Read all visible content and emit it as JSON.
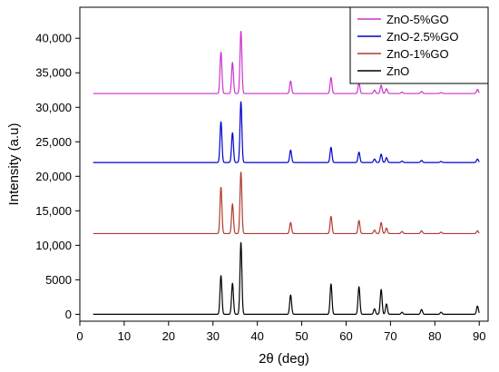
{
  "chart_data": {
    "type": "line",
    "title": "",
    "xlabel": "2θ (deg)",
    "ylabel": "Intensity (a.u)",
    "xlim": [
      0,
      92
    ],
    "ylim": [
      -1000,
      44500
    ],
    "x_ticks": [
      0,
      10,
      20,
      30,
      40,
      50,
      60,
      70,
      80,
      90
    ],
    "y_ticks": [
      0,
      5000,
      10000,
      15000,
      20000,
      25000,
      30000,
      35000,
      40000
    ],
    "y_tick_labels": [
      "0",
      "5000",
      "10,000",
      "15,000",
      "20,000",
      "25,000",
      "30,000",
      "35,000",
      "40,000"
    ],
    "grid": false,
    "legend_position": "top-right",
    "x_start": 3,
    "x_end": 90,
    "peak_width": 0.3,
    "series": [
      {
        "name": "ZnO-5%GO",
        "color": "#cc33cc",
        "baseline": 32000,
        "peaks": [
          [
            31.8,
            38000
          ],
          [
            34.4,
            36500
          ],
          [
            36.3,
            41000
          ],
          [
            47.5,
            33800
          ],
          [
            56.6,
            34300
          ],
          [
            62.9,
            33500
          ],
          [
            66.4,
            32500
          ],
          [
            67.9,
            33200
          ],
          [
            69.1,
            32700
          ],
          [
            72.6,
            32200
          ],
          [
            77.0,
            32300
          ],
          [
            81.4,
            32150
          ],
          [
            89.6,
            32600
          ]
        ]
      },
      {
        "name": "ZnO-2.5%GO",
        "color": "#0000cc",
        "baseline": 22000,
        "peaks": [
          [
            31.8,
            27900
          ],
          [
            34.4,
            26300
          ],
          [
            36.3,
            30800
          ],
          [
            47.5,
            23800
          ],
          [
            56.6,
            24200
          ],
          [
            62.9,
            23500
          ],
          [
            66.4,
            22500
          ],
          [
            67.9,
            23200
          ],
          [
            69.1,
            22700
          ],
          [
            72.6,
            22200
          ],
          [
            77.0,
            22300
          ],
          [
            81.4,
            22150
          ],
          [
            89.6,
            22500
          ]
        ]
      },
      {
        "name": "ZnO-1%GO",
        "color": "#b03a2e",
        "baseline": 11700,
        "peaks": [
          [
            31.8,
            18400
          ],
          [
            34.4,
            16000
          ],
          [
            36.3,
            20600
          ],
          [
            47.5,
            13300
          ],
          [
            56.6,
            14200
          ],
          [
            62.9,
            13600
          ],
          [
            66.4,
            12200
          ],
          [
            67.9,
            13300
          ],
          [
            69.1,
            12500
          ],
          [
            72.6,
            12000
          ],
          [
            77.0,
            12100
          ],
          [
            81.4,
            11900
          ],
          [
            89.6,
            12100
          ]
        ]
      },
      {
        "name": "ZnO",
        "color": "#000000",
        "baseline": 0,
        "peaks": [
          [
            31.8,
            5600
          ],
          [
            34.4,
            4500
          ],
          [
            36.3,
            10400
          ],
          [
            47.5,
            2800
          ],
          [
            56.6,
            4400
          ],
          [
            62.9,
            4000
          ],
          [
            66.4,
            800
          ],
          [
            67.9,
            3600
          ],
          [
            69.1,
            1500
          ],
          [
            72.6,
            300
          ],
          [
            77.0,
            700
          ],
          [
            81.4,
            300
          ],
          [
            89.6,
            1200
          ]
        ]
      }
    ]
  }
}
